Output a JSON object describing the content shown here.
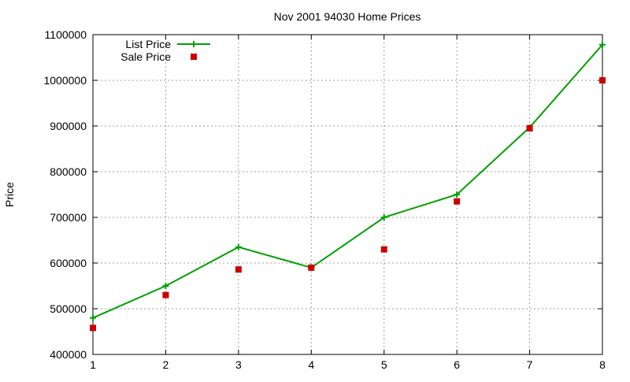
{
  "chart_data": {
    "type": "line",
    "title": "Nov 2001 94030 Home Prices",
    "xlabel": "",
    "ylabel": "Price",
    "x": [
      1,
      2,
      3,
      4,
      5,
      6,
      7,
      8
    ],
    "xlim": [
      1,
      8
    ],
    "ylim": [
      400000,
      1100000
    ],
    "xticks": [
      "1",
      "2",
      "3",
      "4",
      "5",
      "6",
      "7",
      "8"
    ],
    "yticks": [
      "400000",
      "500000",
      "600000",
      "700000",
      "800000",
      "900000",
      "1000000",
      "1100000"
    ],
    "grid": true,
    "legend_position": "top-left",
    "series": [
      {
        "name": "List Price",
        "style": "line-with-plus-markers",
        "color": "#00a000",
        "values": [
          480000,
          550000,
          635000,
          590000,
          700000,
          750000,
          897000,
          1078000
        ]
      },
      {
        "name": "Sale Price",
        "style": "square-markers",
        "color": "#cc0000",
        "values": [
          458000,
          530000,
          586000,
          590000,
          630000,
          735000,
          895000,
          1000000
        ]
      }
    ]
  }
}
